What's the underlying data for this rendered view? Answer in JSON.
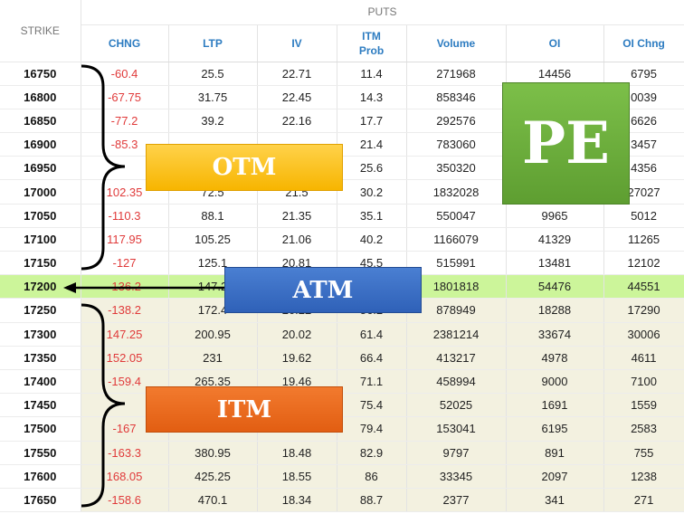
{
  "header": {
    "strike_label": "STRIKE",
    "group_label": "PUTS",
    "columns": [
      "CHNG",
      "LTP",
      "IV",
      "ITM\nProb",
      "Volume",
      "OI",
      "OI Chng"
    ]
  },
  "rows": [
    {
      "strike": "16750",
      "chng": "-60.4",
      "ltp": "25.5",
      "iv": "22.71",
      "itm_prob": "11.4",
      "volume": "271968",
      "oi": "14456",
      "oi_chng": "6795"
    },
    {
      "strike": "16800",
      "chng": "-67.75",
      "ltp": "31.75",
      "iv": "22.45",
      "itm_prob": "14.3",
      "volume": "858346",
      "oi": "",
      "oi_chng": "0039"
    },
    {
      "strike": "16850",
      "chng": "-77.2",
      "ltp": "39.2",
      "iv": "22.16",
      "itm_prob": "17.7",
      "volume": "292576",
      "oi": "",
      "oi_chng": "6626"
    },
    {
      "strike": "16900",
      "chng": "-85.3",
      "ltp": "",
      "iv": "",
      "itm_prob": "21.4",
      "volume": "783060",
      "oi": "",
      "oi_chng": "3457"
    },
    {
      "strike": "16950",
      "chng": "",
      "ltp": "",
      "iv": "",
      "itm_prob": "25.6",
      "volume": "350320",
      "oi": "",
      "oi_chng": "4356"
    },
    {
      "strike": "17000",
      "chng": "102.35",
      "ltp": "72.5",
      "iv": "21.5",
      "itm_prob": "30.2",
      "volume": "1832028",
      "oi": "",
      "oi_chng": "27027"
    },
    {
      "strike": "17050",
      "chng": "-110.3",
      "ltp": "88.1",
      "iv": "21.35",
      "itm_prob": "35.1",
      "volume": "550047",
      "oi": "9965",
      "oi_chng": "5012"
    },
    {
      "strike": "17100",
      "chng": "117.95",
      "ltp": "105.25",
      "iv": "21.06",
      "itm_prob": "40.2",
      "volume": "1166079",
      "oi": "41329",
      "oi_chng": "11265"
    },
    {
      "strike": "17150",
      "chng": "-127",
      "ltp": "125.1",
      "iv": "20.81",
      "itm_prob": "45.5",
      "volume": "515991",
      "oi": "13481",
      "oi_chng": "12102"
    },
    {
      "strike": "17200",
      "chng": "-136.2",
      "ltp": "147.2",
      "iv": "",
      "itm_prob": "",
      "volume": "1801818",
      "oi": "54476",
      "oi_chng": "44551"
    },
    {
      "strike": "17250",
      "chng": "-138.2",
      "ltp": "172.4",
      "iv": "20.22",
      "itm_prob": "56.2",
      "volume": "878949",
      "oi": "18288",
      "oi_chng": "17290"
    },
    {
      "strike": "17300",
      "chng": "147.25",
      "ltp": "200.95",
      "iv": "20.02",
      "itm_prob": "61.4",
      "volume": "2381214",
      "oi": "33674",
      "oi_chng": "30006"
    },
    {
      "strike": "17350",
      "chng": "152.05",
      "ltp": "231",
      "iv": "19.62",
      "itm_prob": "66.4",
      "volume": "413217",
      "oi": "4978",
      "oi_chng": "4611"
    },
    {
      "strike": "17400",
      "chng": "-159.4",
      "ltp": "265.35",
      "iv": "19.46",
      "itm_prob": "71.1",
      "volume": "458994",
      "oi": "9000",
      "oi_chng": "7100"
    },
    {
      "strike": "17450",
      "chng": "",
      "ltp": "",
      "iv": "",
      "itm_prob": "75.4",
      "volume": "52025",
      "oi": "1691",
      "oi_chng": "1559"
    },
    {
      "strike": "17500",
      "chng": "-167",
      "ltp": "",
      "iv": "",
      "itm_prob": "79.4",
      "volume": "153041",
      "oi": "6195",
      "oi_chng": "2583"
    },
    {
      "strike": "17550",
      "chng": "-163.3",
      "ltp": "380.95",
      "iv": "18.48",
      "itm_prob": "82.9",
      "volume": "9797",
      "oi": "891",
      "oi_chng": "755"
    },
    {
      "strike": "17600",
      "chng": "168.05",
      "ltp": "425.25",
      "iv": "18.55",
      "itm_prob": "86",
      "volume": "33345",
      "oi": "2097",
      "oi_chng": "1238"
    },
    {
      "strike": "17650",
      "chng": "-158.6",
      "ltp": "470.1",
      "iv": "18.34",
      "itm_prob": "88.7",
      "volume": "2377",
      "oi": "341",
      "oi_chng": "271"
    }
  ],
  "atm_index": 9,
  "itm_start_index": 10,
  "annotations": {
    "otm": "OTM",
    "atm": "ATM",
    "itm": "ITM",
    "pe": "PE"
  },
  "colors": {
    "header_blue": "#2d7cc1",
    "negative_red": "#e03a3a",
    "atm_row": "#ccf59a",
    "itm_row": "#f3f1e0",
    "otm_label": "#f7b500",
    "atm_label": "#2f61b8",
    "itm_label": "#e25e12",
    "pe_label": "#5e9e31"
  }
}
